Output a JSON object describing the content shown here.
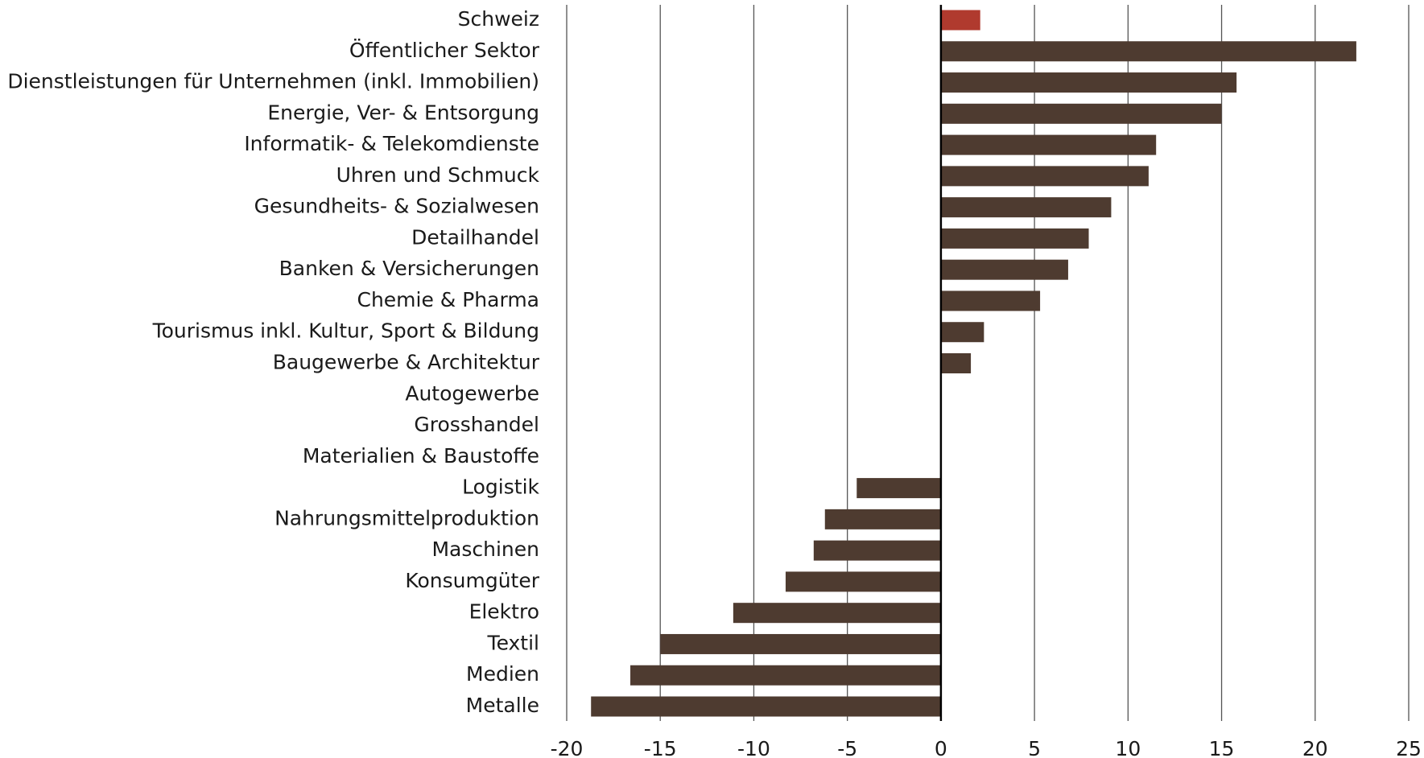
{
  "chart_data": {
    "type": "barh",
    "categories": [
      "Schweiz",
      "Öffentlicher Sektor",
      "Dienstleistungen für Unternehmen (inkl. Immobilien)",
      "Energie, Ver- & Entsorgung",
      "Informatik- & Telekomdienste",
      "Uhren und Schmuck",
      "Gesundheits- & Sozialwesen",
      "Detailhandel",
      "Banken & Versicherungen",
      "Chemie & Pharma",
      "Tourismus inkl. Kultur, Sport & Bildung",
      "Baugewerbe & Architektur",
      "Autogewerbe",
      "Grosshandel",
      "Materialien & Baustoffe",
      "Logistik",
      "Nahrungsmittelproduktion",
      "Maschinen",
      "Konsumgüter",
      "Elektro",
      "Textil",
      "Medien",
      "Metalle"
    ],
    "values": [
      2.1,
      22.2,
      15.8,
      15.0,
      11.5,
      11.1,
      9.1,
      7.9,
      6.8,
      5.3,
      2.3,
      1.6,
      0,
      0,
      0,
      -4.5,
      -6.2,
      -6.8,
      -8.3,
      -11.1,
      -15.0,
      -16.6,
      -18.7
    ],
    "colors": [
      "#b03a2e",
      "#4e3b30",
      "#4e3b30",
      "#4e3b30",
      "#4e3b30",
      "#4e3b30",
      "#4e3b30",
      "#4e3b30",
      "#4e3b30",
      "#4e3b30",
      "#4e3b30",
      "#4e3b30",
      "#4e3b30",
      "#4e3b30",
      "#4e3b30",
      "#4e3b30",
      "#4e3b30",
      "#4e3b30",
      "#4e3b30",
      "#4e3b30",
      "#4e3b30",
      "#4e3b30",
      "#4e3b30"
    ],
    "xlim": [
      -20,
      25
    ],
    "xticks": [
      -20,
      -15,
      -10,
      -5,
      0,
      5,
      10,
      15,
      20,
      25
    ],
    "grid": true
  }
}
